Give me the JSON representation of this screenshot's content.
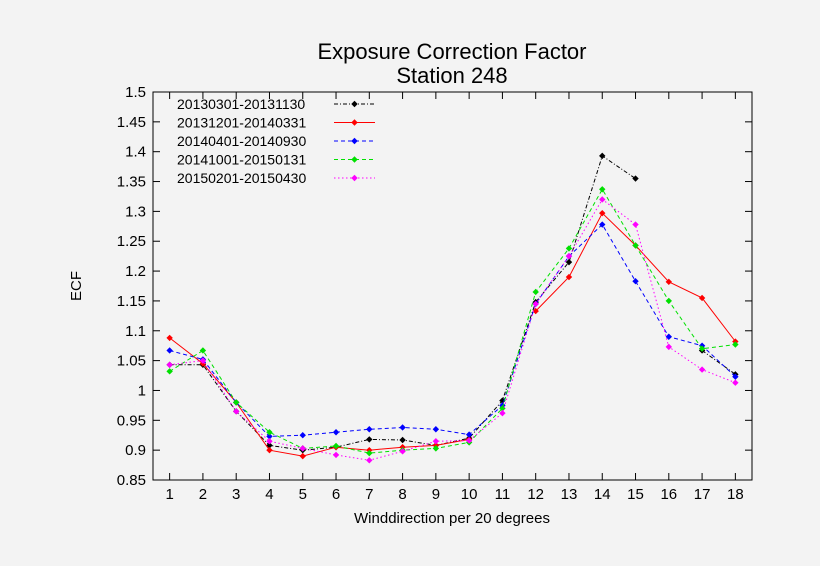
{
  "chart_data": {
    "type": "line",
    "title": "Exposure Correction Factor",
    "subtitle": "Station 248",
    "xlabel": "Winddirection per 20 degrees",
    "ylabel": "ECF",
    "xlim": [
      0.5,
      18.5
    ],
    "ylim": [
      0.85,
      1.5
    ],
    "xticks": [
      1,
      2,
      3,
      4,
      5,
      6,
      7,
      8,
      9,
      10,
      11,
      12,
      13,
      14,
      15,
      16,
      17,
      18
    ],
    "xtick_labels": [
      "1",
      "2",
      "3",
      "4",
      "5",
      "6",
      "7",
      "8",
      "9",
      "10",
      "11",
      "12",
      "13",
      "14",
      "15",
      "16",
      "17",
      "18"
    ],
    "yticks": [
      0.85,
      0.9,
      0.95,
      1.0,
      1.05,
      1.1,
      1.15,
      1.2,
      1.25,
      1.3,
      1.35,
      1.4,
      1.45,
      1.5
    ],
    "ytick_labels": [
      "0.85",
      "0.9",
      "0.95",
      "1",
      "1.05",
      "1.1",
      "1.15",
      "1.2",
      "1.25",
      "1.3",
      "1.35",
      "1.4",
      "1.45",
      "1.5"
    ],
    "grid": false,
    "legend_position": "top-left",
    "x": [
      1,
      2,
      3,
      4,
      5,
      6,
      7,
      8,
      9,
      10,
      11,
      12,
      13,
      14,
      15,
      16,
      17,
      18
    ],
    "series": [
      {
        "name": "20130301-20131130",
        "color": "#000000",
        "dash": "dashdot",
        "values": [
          1.043,
          1.043,
          0.965,
          0.908,
          0.9,
          0.905,
          0.918,
          0.917,
          0.908,
          0.92,
          0.983,
          1.148,
          1.215,
          1.393,
          1.355,
          null,
          1.067,
          1.027
        ]
      },
      {
        "name": "20131201-20140331",
        "color": "#ff0000",
        "dash": "solid",
        "values": [
          1.088,
          1.045,
          0.98,
          0.9,
          0.89,
          0.905,
          0.9,
          0.905,
          0.908,
          0.918,
          null,
          1.133,
          1.19,
          1.297,
          1.243,
          1.182,
          1.155,
          1.082
        ]
      },
      {
        "name": "20140401-20140930",
        "color": "#0000ff",
        "dash": "dashed",
        "values": [
          1.067,
          1.052,
          0.98,
          0.923,
          0.925,
          0.93,
          0.935,
          0.938,
          0.935,
          0.926,
          0.975,
          1.145,
          1.225,
          1.278,
          1.183,
          1.09,
          1.075,
          1.023
        ]
      },
      {
        "name": "20141001-20150131",
        "color": "#00e000",
        "dash": "dashed",
        "values": [
          1.032,
          1.067,
          0.98,
          0.93,
          0.903,
          0.907,
          0.895,
          0.9,
          0.903,
          0.913,
          0.97,
          1.165,
          1.238,
          1.337,
          1.243,
          1.15,
          1.07,
          1.077
        ]
      },
      {
        "name": "20150201-20150430",
        "color": "#ff00ff",
        "dash": "dotted",
        "values": [
          1.043,
          1.05,
          0.965,
          0.915,
          0.903,
          0.892,
          0.883,
          0.898,
          0.915,
          0.916,
          0.962,
          1.145,
          1.225,
          1.32,
          1.278,
          1.073,
          1.035,
          1.013
        ]
      }
    ]
  }
}
